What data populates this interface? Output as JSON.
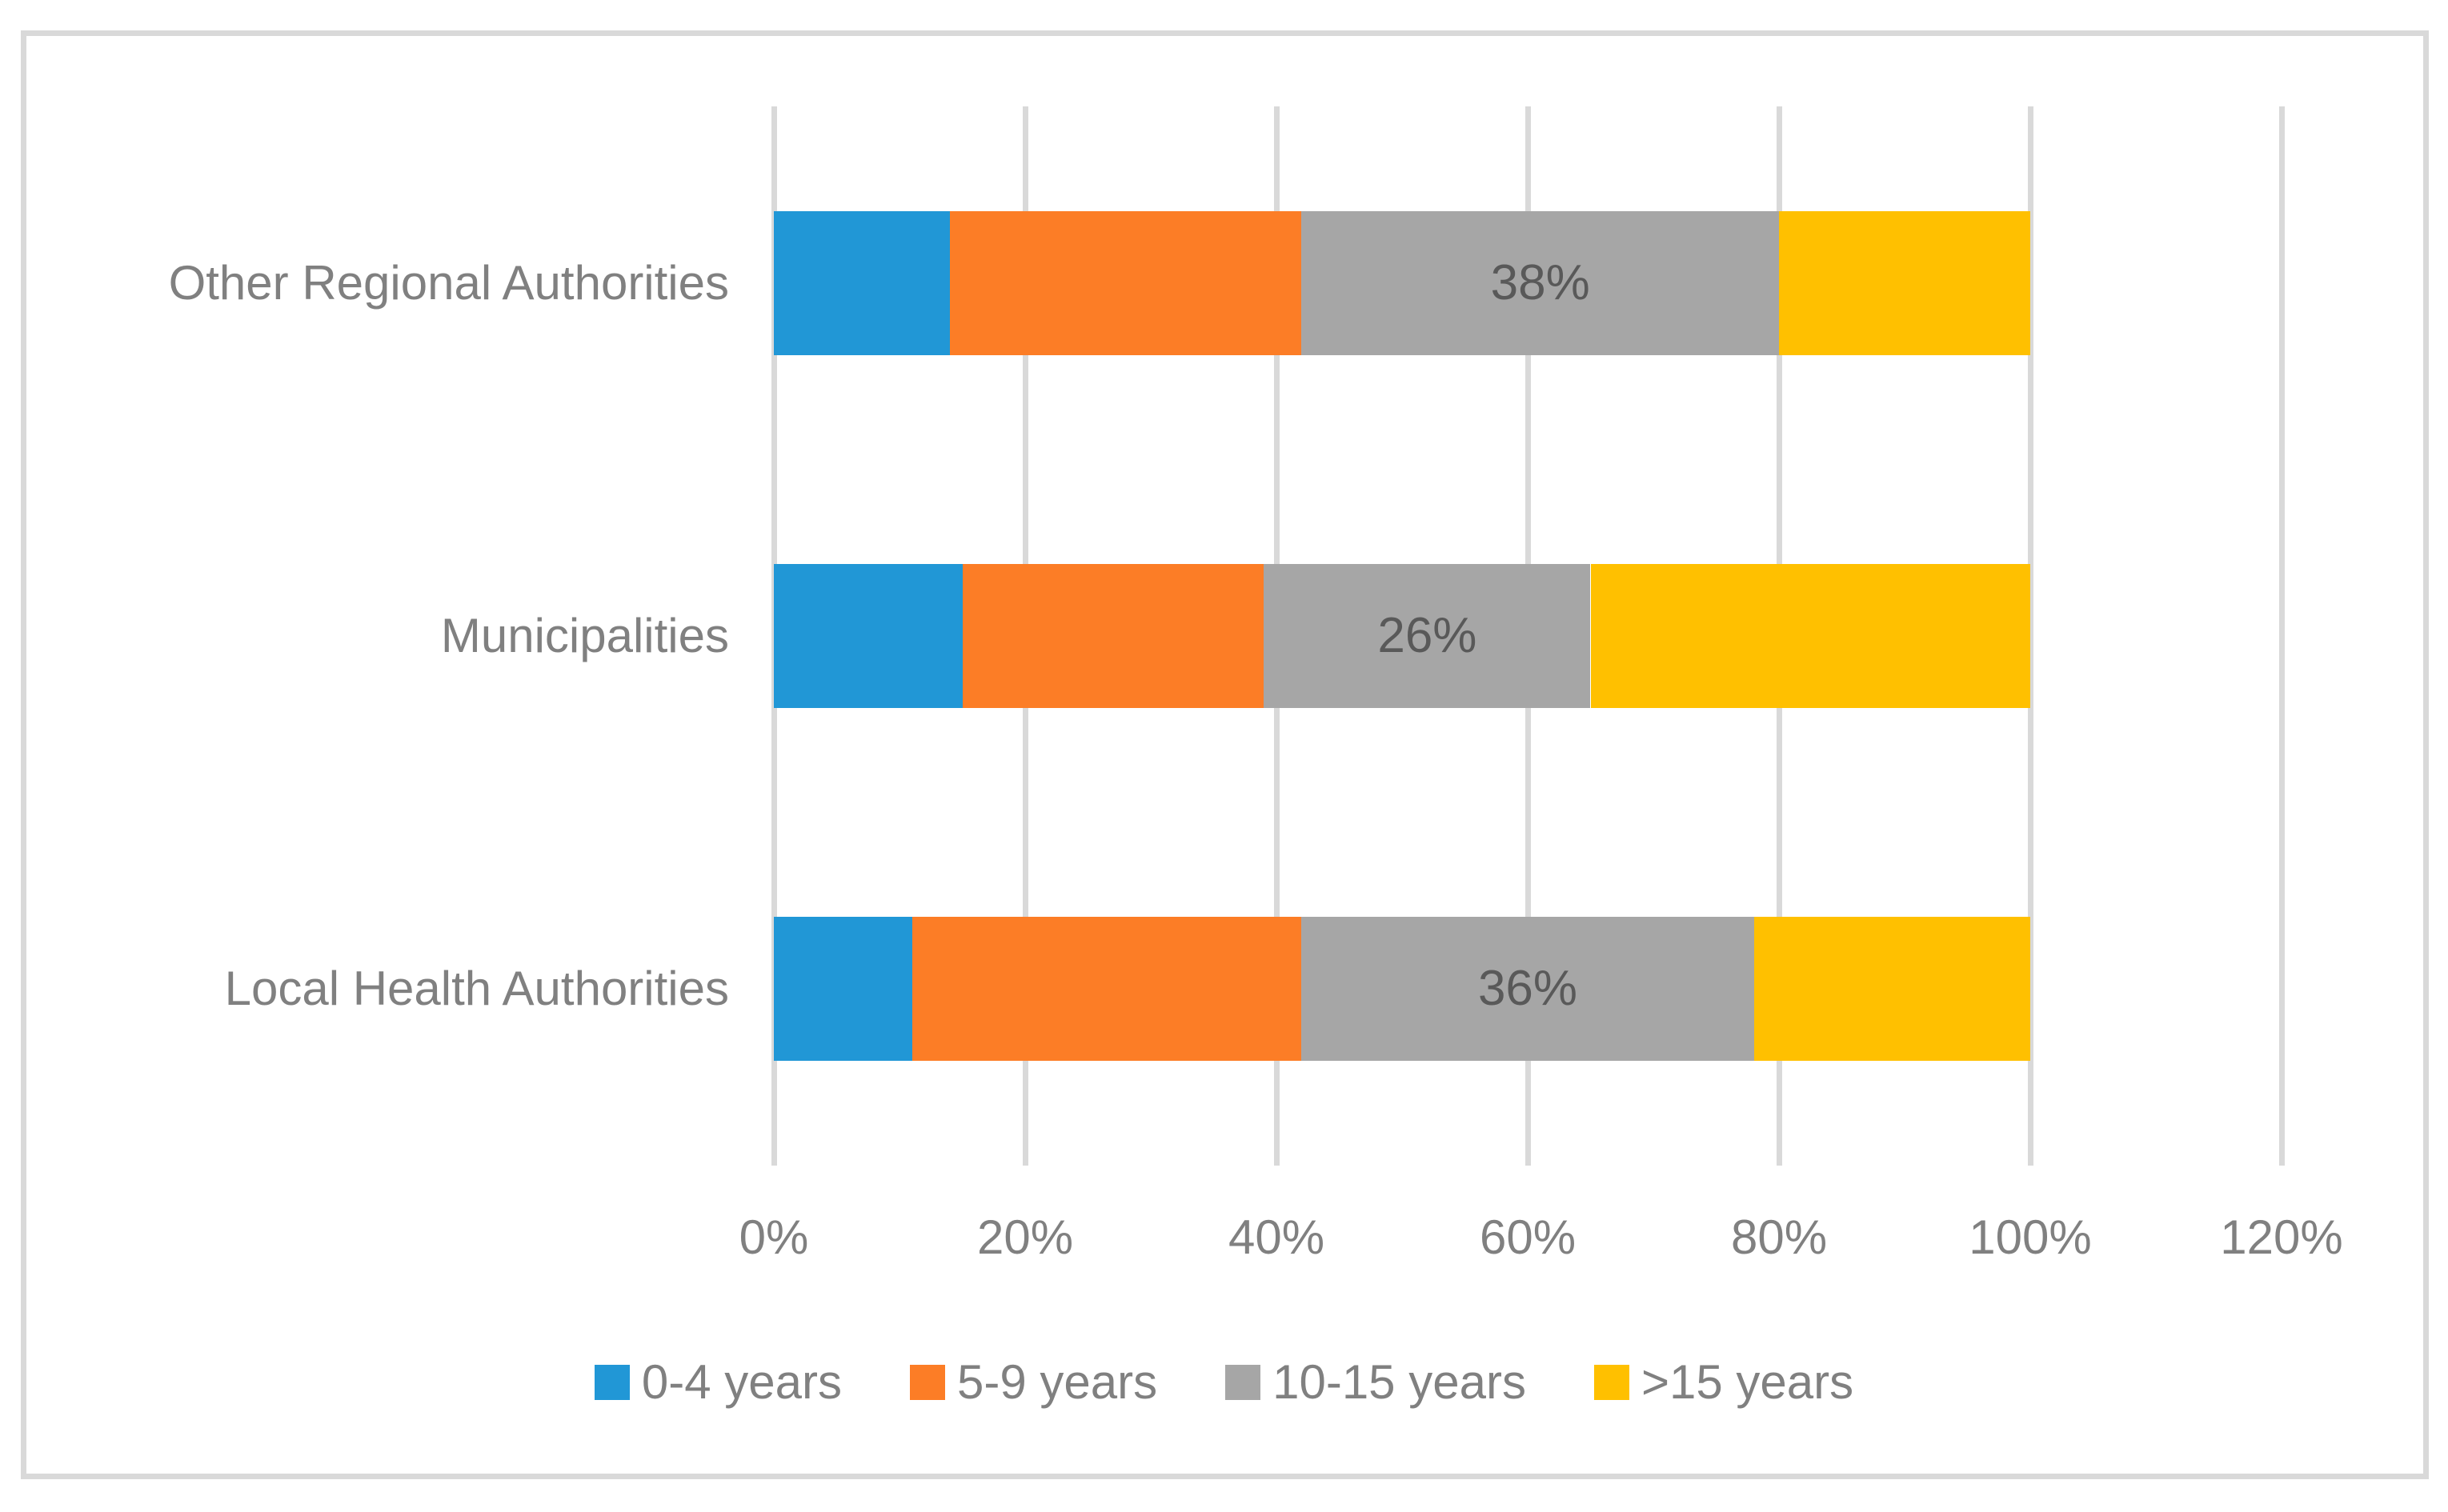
{
  "colors": {
    "background": "#FFFFFF",
    "figure_border": "#D9D9D9",
    "gridline": "#D9D9D9",
    "axis_text": "#808080",
    "category_text": "#808080",
    "legend_text": "#808080",
    "data_label_text": "#595959"
  },
  "chart_data": {
    "type": "bar",
    "orientation": "horizontal",
    "stacked": true,
    "title": "",
    "xlabel": "",
    "ylabel": "",
    "grid": true,
    "categories": [
      "Other Regional Authorities",
      "Municipalities",
      "Local Health Authorities"
    ],
    "series": [
      {
        "name": "0-4 years",
        "color": "#2197D6",
        "values": [
          14,
          15,
          11
        ],
        "data_labels": null
      },
      {
        "name": "5-9 years",
        "color": "#FC7D26",
        "values": [
          28,
          24,
          31
        ],
        "data_labels": null
      },
      {
        "name": "10-15 years",
        "color": "#A6A6A6",
        "values": [
          38,
          26,
          36
        ],
        "data_labels": [
          "38%",
          "26%",
          "36%"
        ]
      },
      {
        "name": ">15 years",
        "color": "#FFC000",
        "values": [
          20,
          35,
          22
        ],
        "data_labels": null
      }
    ],
    "x_axis": {
      "min": 0,
      "max": 120,
      "tick_values": [
        0,
        20,
        40,
        60,
        80,
        100,
        120
      ],
      "ticks": [
        "0%",
        "20%",
        "40%",
        "60%",
        "80%",
        "100%",
        "120%"
      ]
    },
    "legend": {
      "position": "bottom",
      "entries": [
        "0-4 years",
        "5-9 years",
        "10-15 years",
        ">15 years"
      ]
    }
  }
}
